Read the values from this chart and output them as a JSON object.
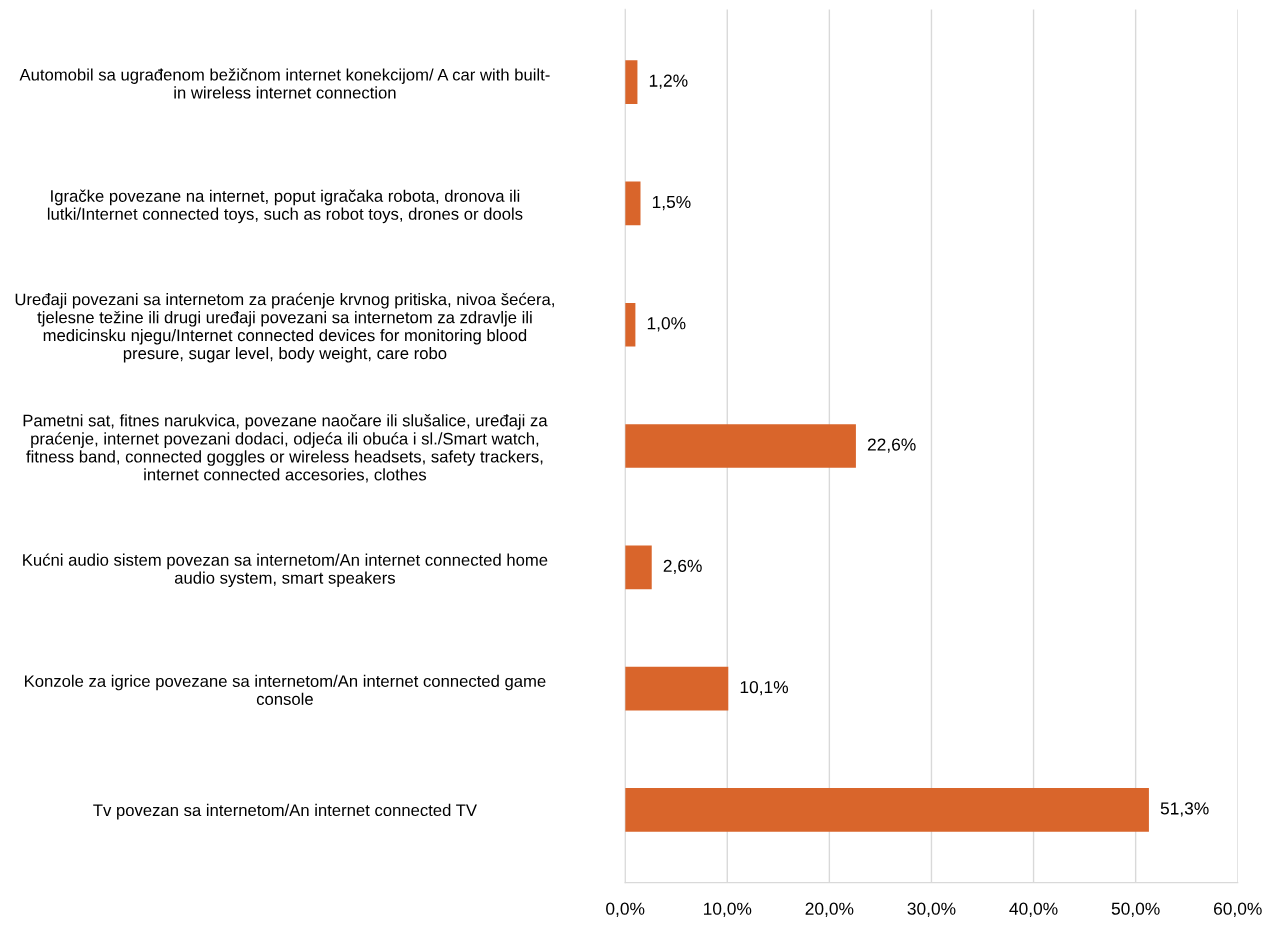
{
  "chart_data": {
    "type": "bar",
    "orientation": "horizontal",
    "categories": [
      "Automobil sa ugrađenom bežičnom internet konekcijom/ A car with built-\nin wireless internet connection",
      "Igračke povezane na internet, poput igračaka robota, dronova ili\nlutki/Internet connected toys, such as robot toys, drones or dools",
      "Uređaji povezani sa internetom za praćenje krvnog pritiska, nivoa šećera,\ntjelesne težine ili drugi uređaji povezani sa internetom za zdravlje ili\nmedicinsku njegu/Internet connected devices for monitoring blood\npresure, sugar level, body weight, care robo",
      "Pametni sat, fitnes narukvica, povezane naočare ili slušalice, uređaji za\npraćenje, internet povezani dodaci, odjeća ili obuća i sl./Smart watch,\nfitness band, connected goggles or wireless headsets, safety trackers,\ninternet connected accesories, clothes",
      "Kućni audio sistem povezan sa internetom/An internet connected home\naudio system, smart speakers",
      "Konzole za igrice povezane sa internetom/An internet connected game\nconsole",
      "Tv povezan sa internetom/An internet connected TV"
    ],
    "values": [
      1.2,
      1.5,
      1.0,
      22.6,
      2.6,
      10.1,
      51.3
    ],
    "value_labels": [
      "1,2%",
      "1,5%",
      "1,0%",
      "22,6%",
      "2,6%",
      "10,1%",
      "51,3%"
    ],
    "color": "#d9652b",
    "xlim": [
      0,
      60
    ],
    "xticks": [
      {
        "value": 0,
        "label": "0,0%"
      },
      {
        "value": 10,
        "label": "10,0%"
      },
      {
        "value": 20,
        "label": "20,0%"
      },
      {
        "value": 30,
        "label": "30,0%"
      },
      {
        "value": 40,
        "label": "40,0%"
      },
      {
        "value": 50,
        "label": "50,0%"
      },
      {
        "value": 60,
        "label": "60,0%"
      }
    ],
    "grid": "x",
    "legend": false
  }
}
